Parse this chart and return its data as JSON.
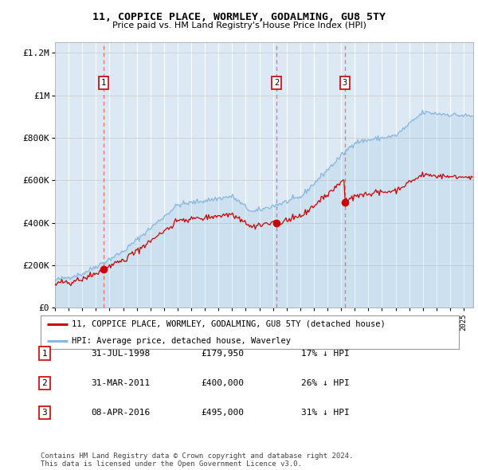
{
  "title": "11, COPPICE PLACE, WORMLEY, GODALMING, GU8 5TY",
  "subtitle": "Price paid vs. HM Land Registry's House Price Index (HPI)",
  "background_color": "#dce9f5",
  "plot_bg_color": "#dce9f5",
  "outer_bg_color": "#ffffff",
  "hpi_color": "#89b8de",
  "price_color": "#cc0000",
  "sale_marker_color": "#cc0000",
  "vline_color": "#ff5555",
  "sale_dates": [
    1998.58,
    2011.25,
    2016.27
  ],
  "sale_prices": [
    179950,
    400000,
    495000
  ],
  "sale_labels": [
    "1",
    "2",
    "3"
  ],
  "legend_entries": [
    "11, COPPICE PLACE, WORMLEY, GODALMING, GU8 5TY (detached house)",
    "HPI: Average price, detached house, Waverley"
  ],
  "table_data": [
    [
      "1",
      "31-JUL-1998",
      "£179,950",
      "17% ↓ HPI"
    ],
    [
      "2",
      "31-MAR-2011",
      "£400,000",
      "26% ↓ HPI"
    ],
    [
      "3",
      "08-APR-2016",
      "£495,000",
      "31% ↓ HPI"
    ]
  ],
  "footnote1": "Contains HM Land Registry data © Crown copyright and database right 2024.",
  "footnote2": "This data is licensed under the Open Government Licence v3.0.",
  "ylim": [
    0,
    1250000
  ],
  "yticks": [
    0,
    200000,
    400000,
    600000,
    800000,
    1000000,
    1200000
  ],
  "ytick_labels": [
    "£0",
    "£200K",
    "£400K",
    "£600K",
    "£800K",
    "£1M",
    "£1.2M"
  ],
  "xstart": 1995.0,
  "xend": 2025.7
}
